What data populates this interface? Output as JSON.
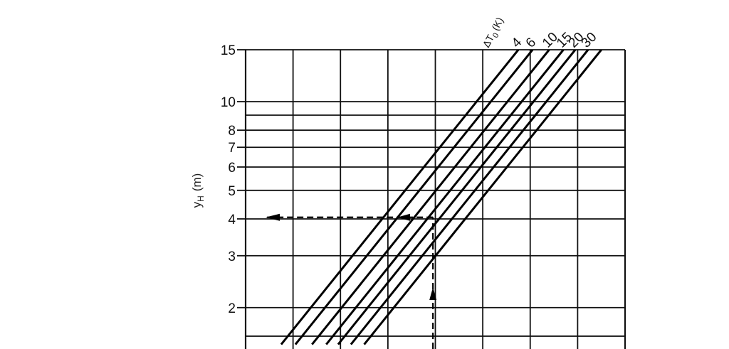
{
  "chart_data": {
    "type": "line",
    "title": "",
    "xlabel": "",
    "ylabel": "y",
    "ylabel_sub": "H",
    "ylabel_unit": "(m)",
    "yscale": "log",
    "ylim": [
      1.5,
      15
    ],
    "y_ticks": [
      15,
      10,
      8,
      7,
      6,
      5,
      4,
      3,
      2
    ],
    "y_tick_labels": [
      "15",
      "10",
      "8",
      "7",
      "6",
      "5",
      "4",
      "3",
      "2"
    ],
    "y_gridlines": [
      15,
      10,
      9,
      8,
      7,
      6,
      5,
      4,
      3,
      2,
      1.6
    ],
    "x_grid_columns": 8,
    "x_tick_labels": [],
    "grid": true,
    "series_title": "ΔT",
    "series_title_sub": "0",
    "series_title_unit": "(K)",
    "series": [
      {
        "name": "4",
        "x": [
          0.75,
          5.75
        ],
        "y": [
          1.5,
          15
        ]
      },
      {
        "name": "6",
        "x": [
          1.05,
          6.05
        ],
        "y": [
          1.5,
          15
        ]
      },
      {
        "name": "10",
        "x": [
          1.4,
          6.4
        ],
        "y": [
          1.5,
          15
        ]
      },
      {
        "name": "15",
        "x": [
          1.7,
          6.7
        ],
        "y": [
          1.5,
          15
        ]
      },
      {
        "name": "20",
        "x": [
          1.95,
          6.95
        ],
        "y": [
          1.5,
          15
        ]
      },
      {
        "name": "30",
        "x": [
          2.22,
          7.22
        ],
        "y": [
          1.5,
          15
        ]
      },
      {
        "name": "",
        "x": [
          2.5,
          7.5
        ],
        "y": [
          1.5,
          15
        ]
      }
    ],
    "annotation_path": {
      "style": "dashed",
      "x_entry": 3.95,
      "y_read": 4.05,
      "x_left": 0.0
    }
  }
}
